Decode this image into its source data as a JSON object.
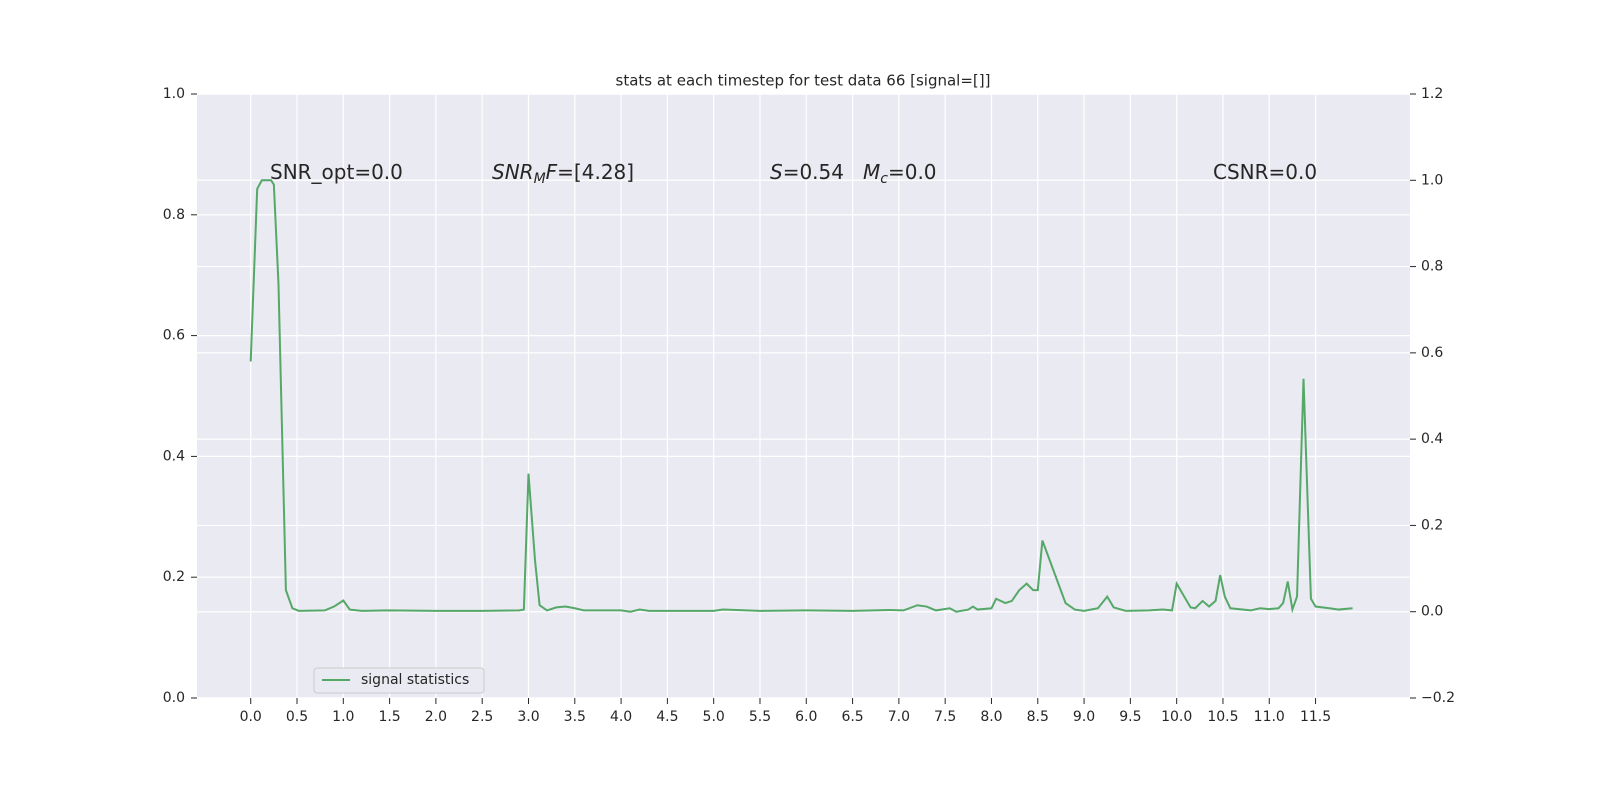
{
  "chart_data": {
    "type": "line",
    "title": "stats at each timestep for test data 66 [signal=[]]",
    "annotations": [
      [
        {
          "text": "SNR_opt=0.0"
        }
      ],
      [
        {
          "text": "SNR",
          "style": "italic"
        },
        {
          "text": "M",
          "style": "italic-sub"
        },
        {
          "text": "F",
          "style": "italic"
        },
        {
          "text": "=[4.28]"
        }
      ],
      [
        {
          "text": "S",
          "style": "italic"
        },
        {
          "text": "=0.54"
        }
      ],
      [
        {
          "text": "M",
          "style": "italic"
        },
        {
          "text": "c",
          "style": "italic-sub"
        },
        {
          "text": "=0.0"
        }
      ],
      [
        {
          "text": "CSNR=0.0"
        }
      ]
    ],
    "x": [
      0.0,
      0.07,
      0.12,
      0.22,
      0.25,
      0.3,
      0.38,
      0.45,
      0.52,
      0.8,
      0.9,
      1.0,
      1.07,
      1.2,
      1.5,
      2.0,
      2.5,
      2.9,
      2.95,
      3.0,
      3.07,
      3.12,
      3.2,
      3.3,
      3.4,
      3.5,
      3.6,
      4.0,
      4.1,
      4.2,
      4.3,
      5.0,
      5.1,
      5.5,
      6.0,
      6.5,
      6.9,
      7.05,
      7.2,
      7.3,
      7.4,
      7.55,
      7.62,
      7.75,
      7.8,
      7.85,
      8.0,
      8.05,
      8.15,
      8.22,
      8.3,
      8.38,
      8.45,
      8.5,
      8.55,
      8.8,
      8.9,
      9.0,
      9.15,
      9.25,
      9.32,
      9.45,
      9.7,
      9.85,
      9.95,
      10.0,
      10.15,
      10.2,
      10.28,
      10.35,
      10.42,
      10.47,
      10.52,
      10.58,
      10.8,
      10.9,
      11.0,
      11.1,
      11.15,
      11.2,
      11.25,
      11.3,
      11.37,
      11.45,
      11.5,
      11.65,
      11.75,
      11.9
    ],
    "series": [
      {
        "name": "signal statistics",
        "color": "#55a868",
        "axis": "y2",
        "values": [
          0.58,
          0.98,
          1.0,
          1.0,
          0.99,
          0.76,
          0.05,
          0.008,
          0.002,
          0.003,
          0.012,
          0.026,
          0.005,
          0.002,
          0.003,
          0.002,
          0.002,
          0.003,
          0.005,
          0.32,
          0.12,
          0.015,
          0.003,
          0.01,
          0.012,
          0.008,
          0.003,
          0.003,
          0.0,
          0.005,
          0.002,
          0.002,
          0.005,
          0.002,
          0.003,
          0.002,
          0.004,
          0.003,
          0.015,
          0.012,
          0.003,
          0.008,
          0.0,
          0.005,
          0.012,
          0.005,
          0.008,
          0.03,
          0.02,
          0.025,
          0.05,
          0.065,
          0.05,
          0.05,
          0.165,
          0.02,
          0.005,
          0.002,
          0.008,
          0.035,
          0.01,
          0.002,
          0.003,
          0.005,
          0.003,
          0.065,
          0.01,
          0.008,
          0.025,
          0.012,
          0.025,
          0.085,
          0.035,
          0.008,
          0.003,
          0.008,
          0.006,
          0.008,
          0.02,
          0.07,
          0.005,
          0.035,
          0.54,
          0.03,
          0.012,
          0.008,
          0.005,
          0.008
        ]
      }
    ],
    "xlim": [
      -0.58,
      12.52
    ],
    "xticks": [
      {
        "value": 0,
        "label": "0.0"
      },
      0.5,
      {
        "value": 1,
        "label": "1.0"
      },
      1.5,
      {
        "value": 2,
        "label": "2.0"
      },
      2.5,
      {
        "value": 3,
        "label": "3.0"
      },
      3.5,
      {
        "value": 4,
        "label": "4.0"
      },
      4.5,
      {
        "value": 5,
        "label": "5.0"
      },
      5.5,
      {
        "value": 6,
        "label": "6.0"
      },
      6.5,
      {
        "value": 7,
        "label": "7.0"
      },
      7.5,
      {
        "value": 8,
        "label": "8.0"
      },
      8.5,
      {
        "value": 9,
        "label": "9.0"
      },
      9.5,
      {
        "value": 10,
        "label": "10.0"
      },
      10.5,
      {
        "value": 11,
        "label": "11.0"
      },
      11.5
    ],
    "ylim": [
      0,
      1
    ],
    "yticks": [
      {
        "value": 0,
        "label": "0.0"
      },
      0.2,
      0.4,
      0.6,
      0.8,
      {
        "value": 1,
        "label": "1.0"
      }
    ],
    "y2lim": [
      -0.2,
      1.2
    ],
    "y2ticks": [
      {
        "value": -0.2,
        "label": "−0.2"
      },
      {
        "value": 0,
        "label": "0.0"
      },
      0.2,
      0.4,
      0.6,
      0.8,
      {
        "value": 1,
        "label": "1.0"
      },
      1.2
    ],
    "grid": true,
    "legend": "lower left"
  }
}
